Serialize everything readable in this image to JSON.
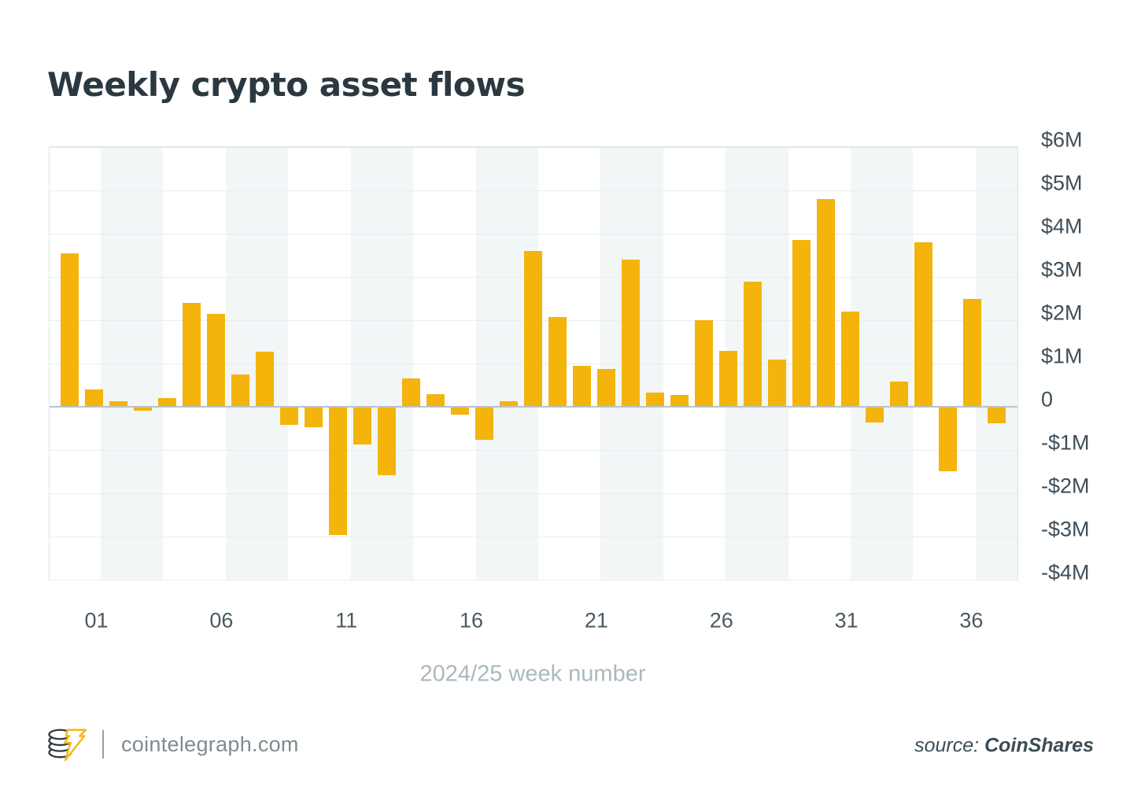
{
  "page": {
    "title": "Weekly crypto asset flows"
  },
  "chart_data": {
    "type": "bar",
    "title": "Weekly crypto asset flows",
    "xlabel": "2024/25 week number",
    "ylabel": "",
    "ylim": [
      -4,
      6
    ],
    "grid": true,
    "legend": "none",
    "bar_color": "#f4b40c",
    "values_usd_millions": [
      3.55,
      0.4,
      0.13,
      -0.07,
      0.2,
      2.4,
      2.15,
      0.75,
      1.27,
      -0.4,
      -0.46,
      -2.95,
      -0.85,
      -1.57,
      0.65,
      0.3,
      -0.16,
      -0.74,
      0.12,
      3.6,
      2.08,
      0.94,
      0.87,
      3.4,
      0.33,
      0.28,
      2.0,
      1.3,
      2.9,
      1.1,
      3.85,
      4.8,
      2.2,
      -0.35,
      0.58,
      3.8,
      -1.47,
      2.5,
      -0.37
    ],
    "x_tick_labels": [
      "01",
      "06",
      "11",
      "16",
      "21",
      "26",
      "31",
      "36"
    ],
    "x_tick_weeks": [
      1,
      6,
      11,
      16,
      21,
      26,
      31,
      36
    ],
    "y_tick_labels": [
      "$6M",
      "$5M",
      "$4M",
      "$3M",
      "$2M",
      "$1M",
      "0",
      "-$1M",
      "-$2M",
      "-$3M",
      "-$4M"
    ],
    "y_tick_values": [
      6,
      5,
      4,
      3,
      2,
      1,
      0,
      -1,
      -2,
      -3,
      -4
    ],
    "background_bands": true
  },
  "footer": {
    "site": "cointelegraph.com",
    "source_label": "source:",
    "source_name": "CoinShares"
  },
  "colors": {
    "bar": "#f4b40c",
    "band": "#f2f6f7",
    "gridline": "#e7edef",
    "zero_line": "#b9c3c9",
    "title": "#2b3840",
    "tick_text": "#45545e",
    "axis_title_text": "#aab8bf",
    "footer_site_text": "#7e8b91",
    "source_text": "#3d4c56"
  }
}
